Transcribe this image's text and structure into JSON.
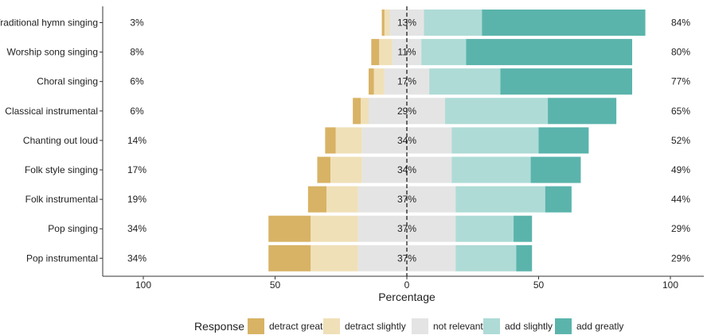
{
  "chart_data": {
    "type": "bar",
    "subtype": "diverging-stacked-bar",
    "orientation": "horizontal",
    "xlabel": "Percentage",
    "xlim": [
      -100,
      100
    ],
    "xticks": [
      -100,
      -50,
      0,
      50,
      100
    ],
    "xtick_labels": [
      "100",
      "50",
      "0",
      "50",
      "100"
    ],
    "grid": false,
    "legend_title": "Response",
    "legend_position": "bottom",
    "categories": [
      "Traditional hymn singing",
      "Worship song singing",
      "Choral singing",
      "Classical instrumental",
      "Chanting out loud",
      "Folk style singing",
      "Folk instrumental",
      "Pop singing",
      "Pop instrumental"
    ],
    "series": [
      {
        "name": "detract greatly",
        "color": "#d8b365",
        "values": [
          1,
          3,
          2,
          3,
          4,
          5,
          7,
          16,
          16
        ]
      },
      {
        "name": "detract slightly",
        "color": "#f0e0b8",
        "values": [
          2,
          5,
          4,
          3,
          10,
          12,
          12,
          18,
          18
        ]
      },
      {
        "name": "not relevant",
        "color": "#e4e4e4",
        "values": [
          13,
          11,
          17,
          29,
          34,
          34,
          37,
          37,
          37
        ]
      },
      {
        "name": "add slightly",
        "color": "#aedbd6",
        "values": [
          22,
          17,
          27,
          39,
          33,
          30,
          34,
          22,
          23
        ]
      },
      {
        "name": "add greatly",
        "color": "#5ab4ac",
        "values": [
          62,
          63,
          50,
          26,
          19,
          19,
          10,
          7,
          6
        ]
      }
    ],
    "left_percent_labels": [
      "3%",
      "8%",
      "6%",
      "6%",
      "14%",
      "17%",
      "19%",
      "34%",
      "34%"
    ],
    "center_percent_labels": [
      "13%",
      "11%",
      "17%",
      "29%",
      "34%",
      "34%",
      "37%",
      "37%",
      "37%"
    ],
    "right_percent_labels": [
      "84%",
      "80%",
      "77%",
      "65%",
      "52%",
      "49%",
      "44%",
      "29%",
      "29%"
    ]
  }
}
